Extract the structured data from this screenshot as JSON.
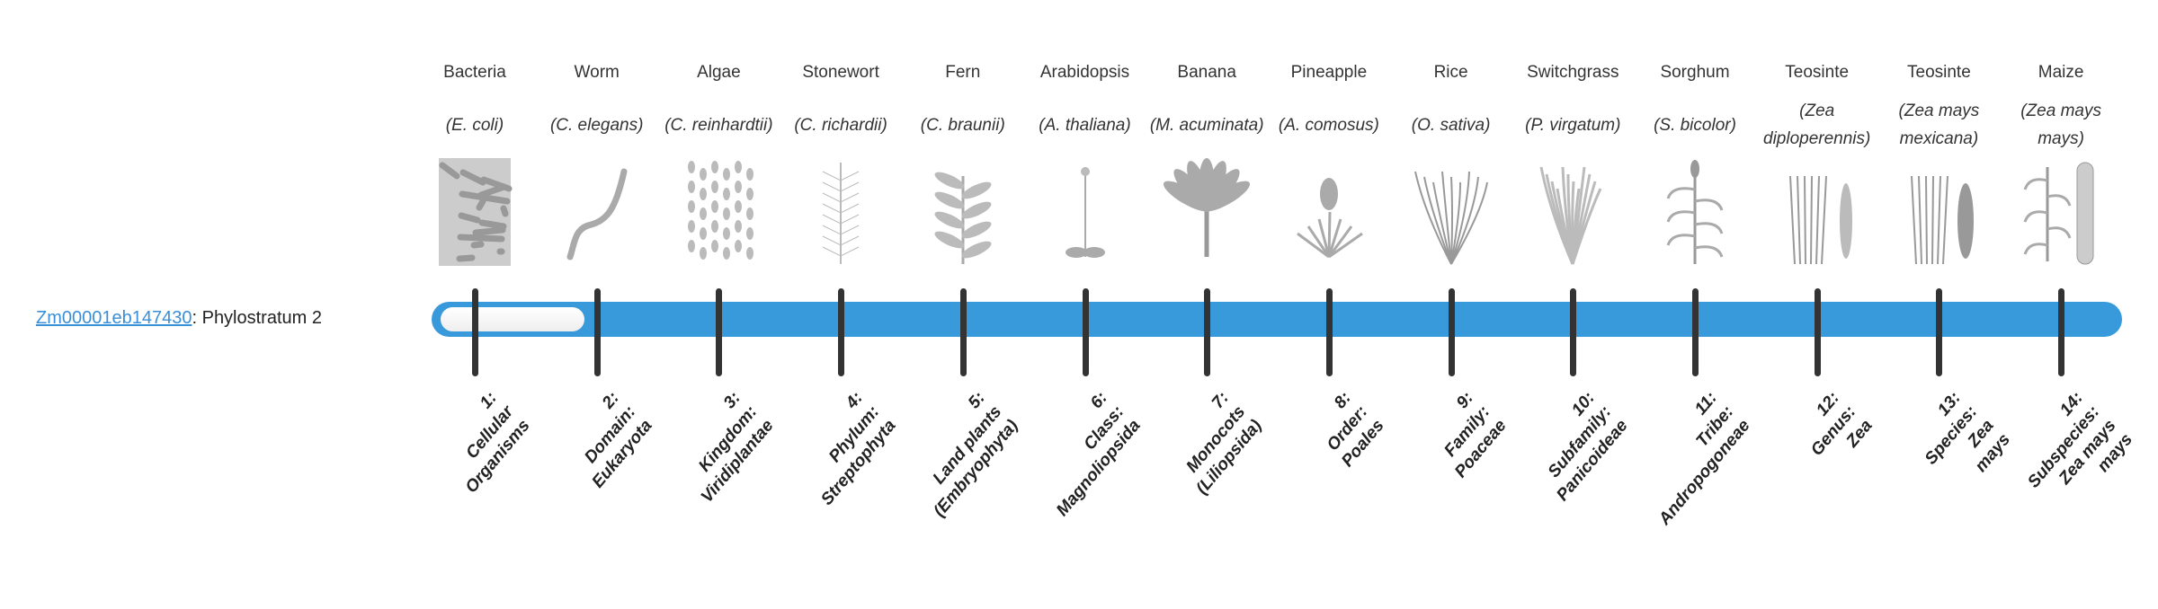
{
  "gene": {
    "id": "Zm00001eb147430",
    "suffix": ": Phylostratum 2",
    "phylostratum": 2
  },
  "colors": {
    "bar": "#3899db",
    "link": "#3a8fd6",
    "tick": "#333333"
  },
  "organisms": [
    {
      "name": "Bacteria",
      "species": "(E. coli)",
      "icon": "bacteria-image"
    },
    {
      "name": "Worm",
      "species": "(C. elegans)",
      "icon": "worm-image"
    },
    {
      "name": "Algae",
      "species": "(C. reinhardtii)",
      "icon": "algae-image"
    },
    {
      "name": "Stonewort",
      "species": "(C. richardii)",
      "icon": "stonewort-image"
    },
    {
      "name": "Fern",
      "species": "(C. braunii)",
      "icon": "fern-image"
    },
    {
      "name": "Arabidopsis",
      "species": "(A. thaliana)",
      "icon": "arabidopsis-image"
    },
    {
      "name": "Banana",
      "species": "(M. acuminata)",
      "icon": "banana-image"
    },
    {
      "name": "Pineapple",
      "species": "(A. comosus)",
      "icon": "pineapple-image"
    },
    {
      "name": "Rice",
      "species": "(O. sativa)",
      "icon": "rice-image"
    },
    {
      "name": "Switchgrass",
      "species": "(P. virgatum)",
      "icon": "switchgrass-image"
    },
    {
      "name": "Sorghum",
      "species": "(S. bicolor)",
      "icon": "sorghum-image"
    },
    {
      "name": "Teosinte",
      "species": "(Zea diploperennis)",
      "icon": "teosinte-image"
    },
    {
      "name": "Teosinte",
      "species": "(Zea mays mexicana)",
      "icon": "teosinte-image"
    },
    {
      "name": "Maize",
      "species": "(Zea mays mays)",
      "icon": "maize-image"
    }
  ],
  "strata": [
    "1:\nCellular\nOrganisms",
    "2:\nDomain:\nEukaryota",
    "3:\nKingdom:\nViridiplantae",
    "4:\nPhylum:\nStreptophyta",
    "5:\nLand plants\n(Embryophyta)",
    "6:\nClass:\nMagnoliopsida",
    "7:\nMonocots\n(Liliopsida)",
    "8:\nOrder:\nPoales",
    "9:\nFamily:\nPoaceae",
    "10:\nSubfamily:\nPanicoideae",
    "11:\nTribe:\nAndropogoneae",
    "12:\nGenus:\nZea",
    "13:\nSpecies:\nZea\nmays",
    "14:\nSubspecies:\nZea mays\nmays"
  ]
}
